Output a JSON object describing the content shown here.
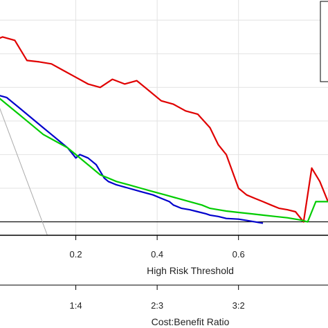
{
  "chart_data": {
    "type": "line",
    "xlabel": "High Risk Threshold",
    "x2label": "Cost:Benefit Ratio",
    "ylabel": "",
    "xlim": [
      0.0,
      0.82
    ],
    "ylim": [
      -0.02,
      0.33
    ],
    "grid": true,
    "legend": "top-right",
    "x_ticks": [
      {
        "value": 0.2,
        "label": "0.2"
      },
      {
        "value": 0.4,
        "label": "0.4"
      },
      {
        "value": 0.6,
        "label": "0.6"
      }
    ],
    "x2_ticks": [
      {
        "value": 0.2,
        "label": "1:4"
      },
      {
        "value": 0.4,
        "label": "2:3"
      },
      {
        "value": 0.6,
        "label": "3:2"
      }
    ],
    "y_grid": [
      0.0,
      0.05,
      0.1,
      0.15,
      0.2,
      0.25,
      0.3
    ],
    "reference_lines": [
      {
        "kind": "treat-none",
        "y": 0.0,
        "color": "#000000"
      },
      {
        "kind": "treat-all",
        "color": "#aaaaaa",
        "x": [
          0.0,
          0.13
        ],
        "y": [
          0.19,
          -0.02
        ]
      }
    ],
    "series": [
      {
        "color": "#e00000",
        "x": [
          0.0,
          0.02,
          0.05,
          0.08,
          0.11,
          0.14,
          0.17,
          0.2,
          0.23,
          0.26,
          0.29,
          0.32,
          0.35,
          0.38,
          0.41,
          0.44,
          0.47,
          0.5,
          0.53,
          0.55,
          0.57,
          0.6,
          0.62,
          0.64,
          0.66,
          0.68,
          0.7,
          0.72,
          0.74,
          0.76,
          0.78,
          0.8,
          0.82
        ],
        "y": [
          0.27,
          0.275,
          0.27,
          0.24,
          0.238,
          0.235,
          0.225,
          0.215,
          0.205,
          0.2,
          0.212,
          0.205,
          0.21,
          0.195,
          0.18,
          0.175,
          0.165,
          0.16,
          0.14,
          0.115,
          0.1,
          0.05,
          0.04,
          0.035,
          0.03,
          0.025,
          0.02,
          0.018,
          0.015,
          0.0,
          0.08,
          0.06,
          0.03
        ]
      },
      {
        "color": "#0000cc",
        "x": [
          0.0,
          0.03,
          0.06,
          0.09,
          0.12,
          0.14,
          0.16,
          0.18,
          0.2,
          0.21,
          0.23,
          0.25,
          0.27,
          0.28,
          0.3,
          0.33,
          0.36,
          0.39,
          0.41,
          0.43,
          0.44,
          0.46,
          0.48,
          0.5,
          0.52,
          0.53,
          0.55,
          0.57,
          0.6,
          0.62,
          0.64,
          0.66
        ],
        "y": [
          0.19,
          0.185,
          0.17,
          0.155,
          0.14,
          0.13,
          0.12,
          0.11,
          0.095,
          0.1,
          0.095,
          0.085,
          0.065,
          0.06,
          0.055,
          0.05,
          0.045,
          0.04,
          0.035,
          0.03,
          0.025,
          0.02,
          0.018,
          0.015,
          0.012,
          0.01,
          0.008,
          0.005,
          0.004,
          0.002,
          0.0,
          -0.002
        ]
      },
      {
        "color": "#00cc00",
        "x": [
          0.0,
          0.03,
          0.06,
          0.09,
          0.12,
          0.15,
          0.18,
          0.2,
          0.22,
          0.24,
          0.26,
          0.28,
          0.3,
          0.33,
          0.36,
          0.39,
          0.42,
          0.45,
          0.48,
          0.51,
          0.53,
          0.55,
          0.57,
          0.6,
          0.63,
          0.66,
          0.69,
          0.72,
          0.75,
          0.77,
          0.79,
          0.82
        ],
        "y": [
          0.19,
          0.175,
          0.16,
          0.145,
          0.13,
          0.12,
          0.11,
          0.1,
          0.09,
          0.08,
          0.07,
          0.065,
          0.06,
          0.055,
          0.05,
          0.045,
          0.04,
          0.035,
          0.03,
          0.025,
          0.02,
          0.018,
          0.016,
          0.014,
          0.012,
          0.01,
          0.008,
          0.006,
          0.003,
          0.0,
          0.03,
          0.03
        ]
      }
    ]
  }
}
